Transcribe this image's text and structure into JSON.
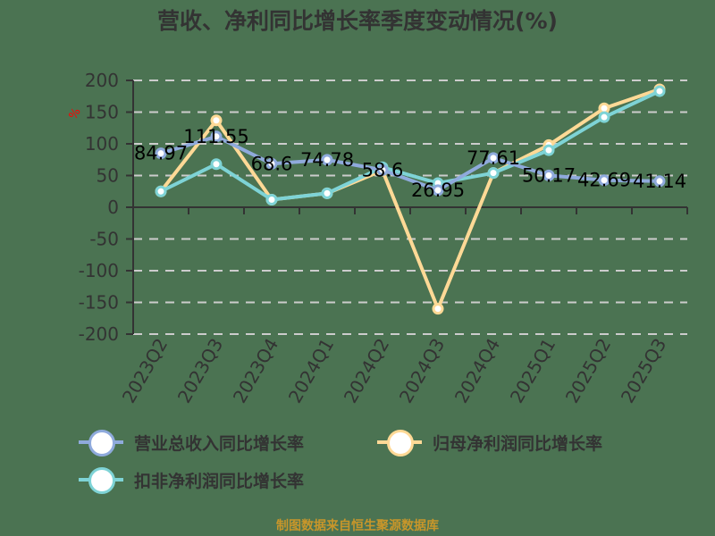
{
  "title": "营收、净利同比增长率季度变动情况(%)",
  "y_axis_label": "%",
  "source": "制图数据来自恒生聚源数据库",
  "legend": [
    {
      "label": "营业总收入同比增长率",
      "color": "#8faadc"
    },
    {
      "label": "归母净利润同比增长率",
      "color": "#ffd996"
    },
    {
      "label": "扣非净利润同比增长率",
      "color": "#7ed3d6"
    }
  ],
  "chart_data": {
    "type": "line",
    "title": "营收、净利同比增长率季度变动情况(%)",
    "xlabel": "",
    "ylabel": "%",
    "ylim": [
      -200,
      200
    ],
    "yticks": [
      200,
      150,
      100,
      50,
      0,
      -50,
      -100,
      -150,
      -200
    ],
    "grid": true,
    "legend_position": "bottom",
    "categories": [
      "2023Q2",
      "2023Q3",
      "2023Q4",
      "2024Q1",
      "2024Q2",
      "2024Q3",
      "2024Q4",
      "2025Q1",
      "2025Q2",
      "2025Q3"
    ],
    "series": [
      {
        "name": "营业总收入同比增长率",
        "color": "#8faadc",
        "values": [
          84.97,
          111.55,
          68.6,
          74.78,
          58.6,
          26.95,
          77.61,
          50.17,
          42.69,
          41.14
        ],
        "labels": [
          "84.97",
          "111.55",
          "68.6",
          "74.78",
          "58.6",
          "26.95",
          "77.61",
          "50.17",
          "42.69",
          "41.14"
        ]
      },
      {
        "name": "归母净利润同比增长率",
        "color": "#ffd996",
        "values": [
          25,
          137,
          12,
          22,
          58,
          -160,
          54,
          98,
          156,
          186
        ]
      },
      {
        "name": "扣非净利润同比增长率",
        "color": "#7ed3d6",
        "values": [
          25,
          68,
          12,
          22,
          63,
          38,
          54,
          90,
          142,
          183
        ]
      }
    ]
  }
}
